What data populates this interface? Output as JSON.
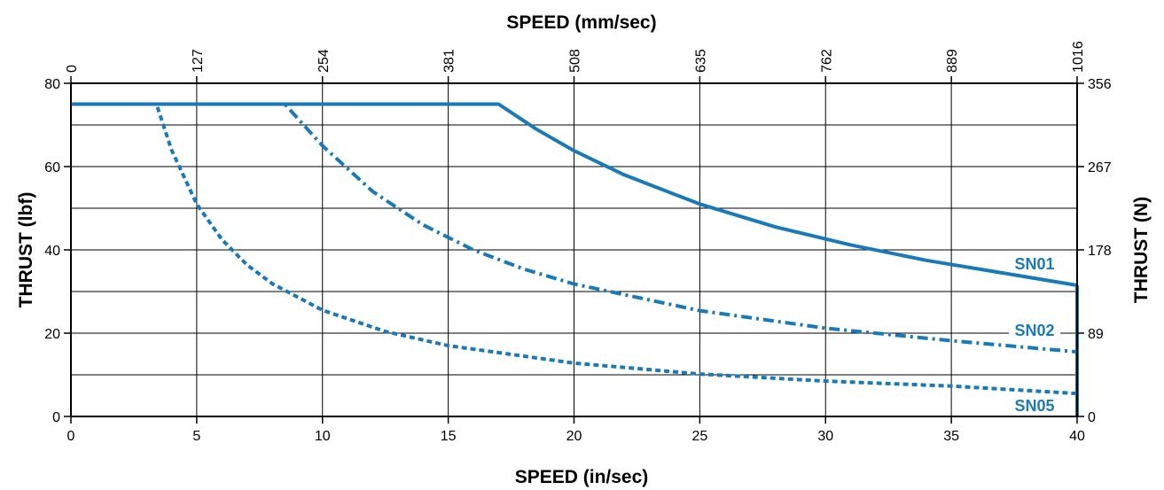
{
  "chart_data": {
    "type": "line",
    "title": "",
    "xlabel": "SPEED (in/sec)",
    "x2label": "SPEED (mm/sec)",
    "ylabel": "THRUST (lbf)",
    "y2label": "THRUST (N)",
    "xlim": [
      0,
      40
    ],
    "ylim": [
      0,
      80
    ],
    "grid": true,
    "x_ticks": [
      "0",
      "5",
      "10",
      "15",
      "20",
      "25",
      "30",
      "35",
      "40"
    ],
    "x2_ticks": [
      "0",
      "127",
      "254",
      "381",
      "508",
      "635",
      "762",
      "889",
      "1016"
    ],
    "y_ticks": [
      "0",
      "20",
      "40",
      "60",
      "80"
    ],
    "y2_ticks": [
      "0",
      "89",
      "178",
      "267",
      "356"
    ],
    "line_color": "#1a7ab8",
    "series": [
      {
        "name": "SN01",
        "style": "solid",
        "points": [
          [
            0,
            75
          ],
          [
            17,
            75
          ],
          [
            18.5,
            69
          ],
          [
            20,
            63.8
          ],
          [
            22,
            58
          ],
          [
            25,
            51
          ],
          [
            28,
            45.5
          ],
          [
            31,
            41.2
          ],
          [
            34,
            37.5
          ],
          [
            37,
            34.5
          ],
          [
            40,
            31.5
          ]
        ]
      },
      {
        "name": "SN02",
        "style": "dash-dot",
        "points": [
          [
            0,
            75
          ],
          [
            8.5,
            75
          ],
          [
            10,
            65
          ],
          [
            12,
            54
          ],
          [
            14,
            46
          ],
          [
            16,
            40
          ],
          [
            18,
            35.4
          ],
          [
            20,
            31.8
          ],
          [
            25,
            25.4
          ],
          [
            30,
            21.2
          ],
          [
            35,
            18.2
          ],
          [
            40,
            15.5
          ]
        ]
      },
      {
        "name": "SN05",
        "style": "dashed",
        "points": [
          [
            0,
            75
          ],
          [
            3.4,
            75
          ],
          [
            4,
            64
          ],
          [
            5,
            51
          ],
          [
            6,
            42.5
          ],
          [
            7,
            36.4
          ],
          [
            8,
            31.9
          ],
          [
            10,
            25.5
          ],
          [
            12.5,
            20.4
          ],
          [
            15,
            17
          ],
          [
            20,
            12.8
          ],
          [
            25,
            10.2
          ],
          [
            30,
            8.5
          ],
          [
            35,
            7.3
          ],
          [
            40,
            5.5
          ]
        ]
      }
    ]
  }
}
